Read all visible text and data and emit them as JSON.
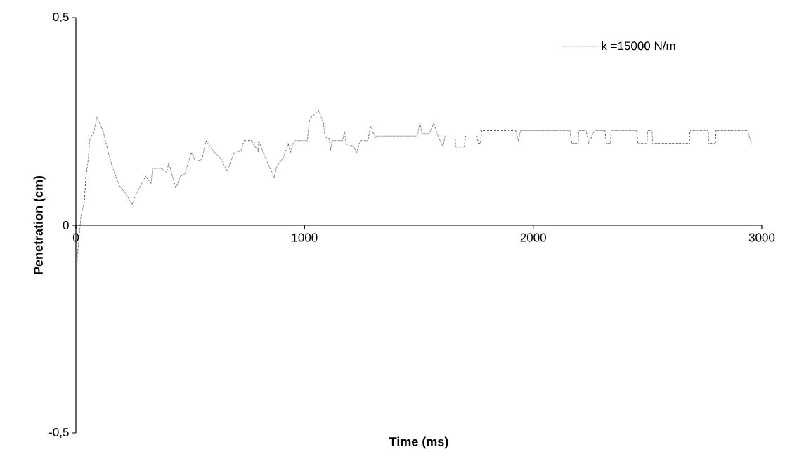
{
  "chart_data": {
    "type": "line",
    "xlabel": "Time (ms)",
    "ylabel": "Penetration (cm)",
    "xlim": [
      0,
      3000
    ],
    "ylim": [
      -0.5,
      0.5
    ],
    "xticks": [
      0,
      1000,
      2000,
      3000
    ],
    "yticks": [
      {
        "value": -0.5,
        "label": "-0,5"
      },
      0,
      {
        "value": 0.5,
        "label": "0,5"
      }
    ],
    "grid": false,
    "legend": "top right",
    "line_style": "dotted",
    "marker": "none",
    "series": [
      {
        "name": "k =15000 N/m",
        "color": "#555555",
        "x": [
          0,
          22,
          37,
          43,
          52,
          62,
          77,
          92,
          120,
          135,
          154,
          166,
          191,
          222,
          246,
          262,
          274,
          305,
          329,
          335,
          375,
          397,
          406,
          437,
          458,
          477,
          489,
          505,
          523,
          551,
          569,
          606,
          631,
          662,
          692,
          723,
          735,
          769,
          797,
          800,
          828,
          868,
          877,
          908,
          929,
          938,
          954,
          1012,
          1022,
          1062,
          1083,
          1089,
          1108,
          1114,
          1120,
          1166,
          1175,
          1182,
          1215,
          1228,
          1243,
          1277,
          1289,
          1308,
          1320,
          1492,
          1505,
          1514,
          1545,
          1566,
          1582,
          1606,
          1615,
          1658,
          1662,
          1698,
          1705,
          1754,
          1760,
          1769,
          1775,
          1923,
          1935,
          1945,
          2160,
          2169,
          2197,
          2200,
          2231,
          2243,
          2268,
          2314,
          2320,
          2338,
          2341,
          2452,
          2458,
          2498,
          2501,
          2520,
          2523,
          2683,
          2686,
          2766,
          2769,
          2797,
          2800,
          2938,
          2954
        ],
        "values": [
          -0.12,
          0.022,
          0.056,
          0.112,
          0.15,
          0.21,
          0.22,
          0.26,
          0.225,
          0.19,
          0.15,
          0.13,
          0.095,
          0.073,
          0.05,
          0.073,
          0.085,
          0.118,
          0.1,
          0.137,
          0.137,
          0.127,
          0.15,
          0.09,
          0.118,
          0.124,
          0.146,
          0.175,
          0.154,
          0.158,
          0.203,
          0.175,
          0.163,
          0.13,
          0.175,
          0.18,
          0.203,
          0.203,
          0.178,
          0.203,
          0.163,
          0.115,
          0.14,
          0.163,
          0.197,
          0.175,
          0.203,
          0.203,
          0.256,
          0.276,
          0.246,
          0.214,
          0.208,
          0.18,
          0.203,
          0.203,
          0.225,
          0.195,
          0.19,
          0.175,
          0.203,
          0.203,
          0.239,
          0.212,
          0.214,
          0.214,
          0.246,
          0.22,
          0.22,
          0.246,
          0.217,
          0.188,
          0.217,
          0.217,
          0.188,
          0.188,
          0.217,
          0.217,
          0.197,
          0.197,
          0.229,
          0.229,
          0.203,
          0.229,
          0.229,
          0.197,
          0.197,
          0.229,
          0.229,
          0.197,
          0.229,
          0.229,
          0.197,
          0.197,
          0.229,
          0.229,
          0.197,
          0.197,
          0.229,
          0.229,
          0.197,
          0.197,
          0.229,
          0.229,
          0.197,
          0.197,
          0.229,
          0.229,
          0.197
        ]
      }
    ]
  }
}
